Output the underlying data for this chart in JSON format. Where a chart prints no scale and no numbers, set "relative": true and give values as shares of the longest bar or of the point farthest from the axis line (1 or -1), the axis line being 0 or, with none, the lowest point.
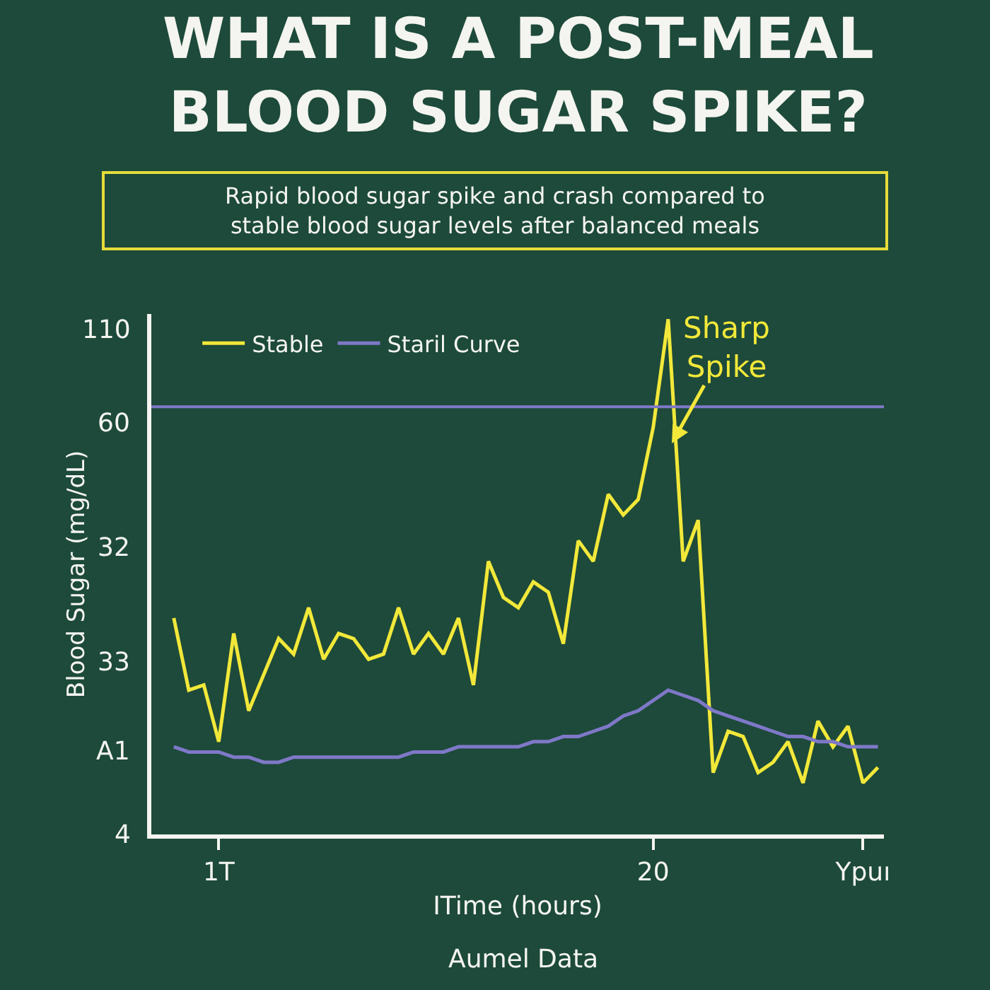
{
  "chart_data": {
    "type": "line",
    "title": "WHAT IS A POST-MEAL\nBLOOD SUGAR SPIKE?",
    "subtitle": "Rapid blood sugar spike and crash compared to\nstable blood sugar levels after balanced meals",
    "xlabel": "ITime (hours)",
    "ylabel": "Blood Sugar (mg/dL)",
    "relative": true,
    "categories": [
      null,
      null,
      null,
      "1T",
      null,
      null,
      null,
      null,
      null,
      null,
      null,
      null,
      null,
      null,
      null,
      null,
      null,
      null,
      null,
      null,
      null,
      null,
      null,
      null,
      null,
      null,
      null,
      null,
      null,
      null,
      null,
      null,
      "20",
      null,
      null,
      null,
      null,
      null,
      null,
      null,
      null,
      null,
      null,
      null,
      null,
      null,
      "Ypuı",
      null
    ],
    "series": [
      {
        "name": "Stable",
        "color": "#f2e83a",
        "values": [
          0.42,
          0.28,
          0.29,
          0.18,
          0.39,
          0.24,
          0.31,
          0.38,
          0.35,
          0.44,
          0.34,
          0.39,
          0.38,
          0.34,
          0.35,
          0.44,
          0.35,
          0.39,
          0.35,
          0.42,
          0.29,
          0.53,
          0.46,
          0.44,
          0.49,
          0.47,
          0.37,
          0.57,
          0.53,
          0.66,
          0.62,
          0.65,
          0.79,
          1,
          0.53,
          0.61,
          0.12,
          0.2,
          0.19,
          0.12,
          0.14,
          0.18,
          0.1,
          0.22,
          0.17,
          0.21,
          0.1,
          0.13
        ]
      },
      {
        "name": "Staril Curve",
        "color": "#7f78c8",
        "values": [
          0.17,
          0.16,
          0.16,
          0.16,
          0.15,
          0.15,
          0.14,
          0.14,
          0.15,
          0.15,
          0.15,
          0.15,
          0.15,
          0.15,
          0.15,
          0.15,
          0.16,
          0.16,
          0.16,
          0.17,
          0.17,
          0.17,
          0.17,
          0.17,
          0.18,
          0.18,
          0.19,
          0.19,
          0.2,
          0.21,
          0.23,
          0.24,
          0.26,
          0.28,
          0.27,
          0.26,
          0.24,
          0.23,
          0.22,
          0.21,
          0.2,
          0.19,
          0.19,
          0.18,
          0.18,
          0.17,
          0.17,
          0.17
        ]
      }
    ],
    "ref_lines": [
      {
        "axis": "y",
        "value": 0.83,
        "label": null,
        "color": "#7f78c8"
      }
    ],
    "annotations": [
      "Sharp\nSpike",
      "110",
      "60",
      "32",
      "33",
      "A1",
      "4",
      "Aumel Data"
    ],
    "legend": "top left",
    "marker": "none",
    "line_style": "solid",
    "grid": false
  }
}
